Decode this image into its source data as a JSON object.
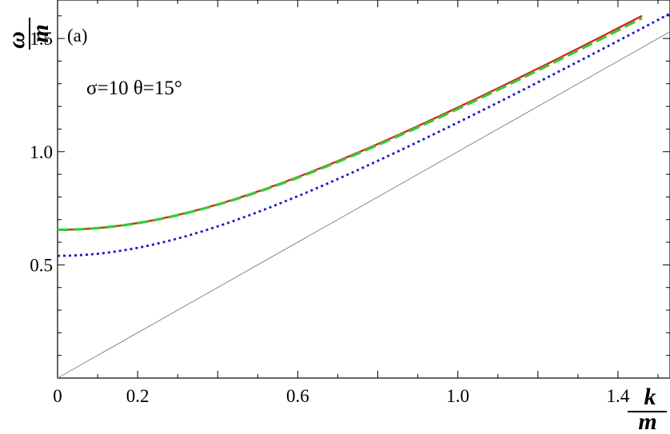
{
  "chart_data": {
    "type": "line",
    "panel_label": "(a)",
    "annotation": "σ=10 θ=15°",
    "xlabel": {
      "numerator": "k",
      "denominator": "m"
    },
    "ylabel": {
      "numerator": "ω",
      "denominator": "m"
    },
    "xlim": [
      0,
      1.53
    ],
    "ylim": [
      0,
      1.67
    ],
    "x_ticks": [
      0,
      0.2,
      0.6,
      1.0,
      1.4
    ],
    "x_tick_labels": [
      "0",
      "0.2",
      "0.6",
      "1.0",
      "1.4"
    ],
    "y_ticks": [
      0.5,
      1.0,
      1.5
    ],
    "y_tick_labels": [
      "0.5",
      "1.0",
      "1.5"
    ],
    "series": [
      {
        "style": "solid",
        "color": "#e0201b",
        "omega0": 0.655,
        "x_end": 1.46,
        "x": [
          0,
          0.2,
          0.4,
          0.6,
          0.8,
          1.0,
          1.2,
          1.4,
          1.46
        ],
        "y": [
          0.655,
          0.685,
          0.77,
          0.89,
          1.04,
          1.2,
          1.37,
          1.55,
          1.6
        ]
      },
      {
        "style": "dashed",
        "color": "#33cc33",
        "omega0": 0.655,
        "x_end": 1.46,
        "x": [
          0,
          0.2,
          0.4,
          0.6,
          0.8,
          1.0,
          1.2,
          1.4,
          1.46
        ],
        "y": [
          0.655,
          0.68,
          0.765,
          0.88,
          1.03,
          1.19,
          1.36,
          1.54,
          1.59
        ]
      },
      {
        "style": "dotted",
        "color": "#1a1acc",
        "omega0": 0.54,
        "x_end": 1.53,
        "x": [
          0,
          0.2,
          0.4,
          0.6,
          0.8,
          1.0,
          1.2,
          1.4,
          1.53
        ],
        "y": [
          0.54,
          0.58,
          0.68,
          0.81,
          0.97,
          1.13,
          1.31,
          1.49,
          1.61
        ]
      },
      {
        "style": "solid-thin",
        "color": "#8a8a8a",
        "omega0": 0,
        "x_end": 1.53,
        "x": [
          0,
          1.53
        ],
        "y": [
          0,
          1.53
        ]
      }
    ]
  },
  "colors": {
    "frame": "#000000",
    "light_line": "#8a8a8a"
  }
}
